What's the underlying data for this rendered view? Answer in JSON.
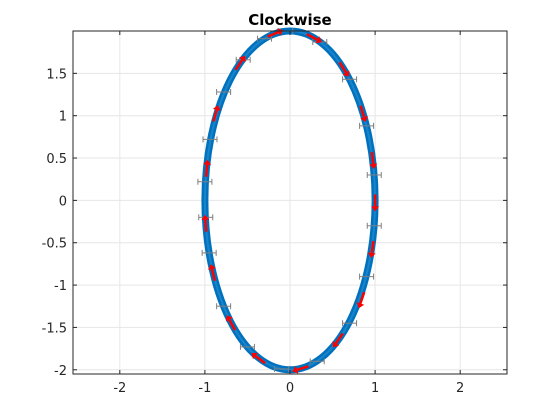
{
  "chart_data": {
    "type": "scatter",
    "title": "Clockwise",
    "xlabel": "",
    "ylabel": "",
    "xlim": [
      -2.55,
      2.55
    ],
    "ylim": [
      -2.05,
      2.0
    ],
    "grid": true,
    "xticks": [
      -2,
      -1,
      0,
      1,
      2
    ],
    "xtick_labels": [
      "-2",
      "-1",
      "0",
      "1",
      "2"
    ],
    "yticks": [
      -2,
      -1.5,
      -1,
      -0.5,
      0,
      0.5,
      1,
      1.5
    ],
    "ytick_labels": [
      "-2",
      "-1.5",
      "-1",
      "-0.5",
      "0",
      "0.5",
      "1",
      "1.5"
    ],
    "series": [
      {
        "kind": "ellipse-band",
        "center": [
          0,
          0
        ],
        "semi_axis_x": 1.0,
        "semi_axis_y": 2.0,
        "direction": "clockwise",
        "color": "#0072BD"
      },
      {
        "kind": "direction-arrows",
        "color": "#FF0000",
        "points": [
          {
            "x": 0.26,
            "y": 1.93
          },
          {
            "x": 0.62,
            "y": 1.57
          },
          {
            "x": 0.85,
            "y": 1.05
          },
          {
            "x": 0.97,
            "y": 0.5
          },
          {
            "x": 1.0,
            "y": 0.0
          },
          {
            "x": 0.97,
            "y": -0.55
          },
          {
            "x": 0.85,
            "y": -1.15
          },
          {
            "x": 0.58,
            "y": -1.63
          },
          {
            "x": 0.15,
            "y": -1.98
          },
          {
            "x": -0.35,
            "y": -1.88
          },
          {
            "x": -0.68,
            "y": -1.47
          },
          {
            "x": -0.9,
            "y": -0.88
          },
          {
            "x": -0.99,
            "y": -0.3
          },
          {
            "x": -0.98,
            "y": 0.35
          },
          {
            "x": -0.88,
            "y": 1.0
          },
          {
            "x": -0.6,
            "y": 1.6
          },
          {
            "x": -0.2,
            "y": 1.96
          }
        ]
      },
      {
        "kind": "error-bars",
        "color": "#7F7F7F",
        "points": [
          {
            "x": -0.3,
            "y": 1.91
          },
          {
            "x": -0.55,
            "y": 1.66
          },
          {
            "x": -0.78,
            "y": 1.28
          },
          {
            "x": -0.94,
            "y": 0.72
          },
          {
            "x": -1.0,
            "y": 0.22
          },
          {
            "x": -0.99,
            "y": -0.2
          },
          {
            "x": -0.95,
            "y": -0.62
          },
          {
            "x": -0.78,
            "y": -1.25
          },
          {
            "x": -0.5,
            "y": -1.73
          },
          {
            "x": -0.1,
            "y": -1.99
          },
          {
            "x": 0.32,
            "y": -1.9
          },
          {
            "x": 0.7,
            "y": -1.45
          },
          {
            "x": 0.9,
            "y": -0.9
          },
          {
            "x": 0.99,
            "y": -0.3
          },
          {
            "x": 0.99,
            "y": 0.3
          },
          {
            "x": 0.9,
            "y": 0.88
          },
          {
            "x": 0.7,
            "y": 1.43
          },
          {
            "x": 0.35,
            "y": 1.87
          },
          {
            "x": -0.05,
            "y": 2.0
          }
        ]
      }
    ]
  }
}
